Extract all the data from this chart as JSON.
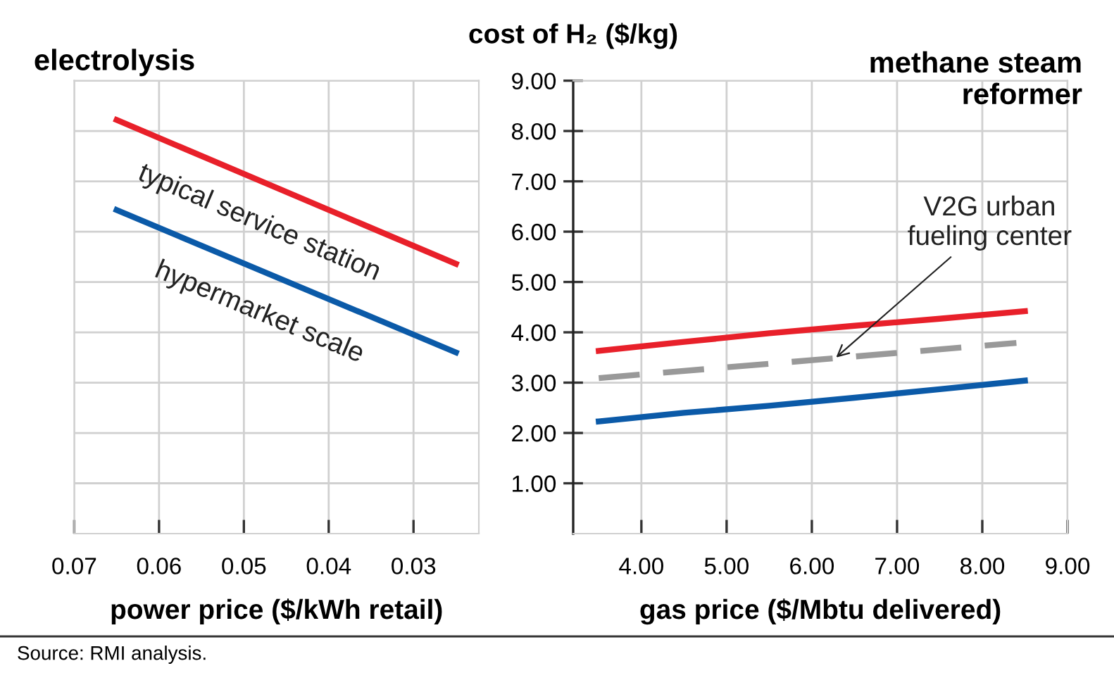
{
  "chart_data": [
    {
      "type": "line",
      "title": "electrolysis",
      "xlabel": "power price ($/kWh retail)",
      "x": [
        0.065,
        0.025
      ],
      "xlim": [
        0.07,
        0.0223
      ],
      "xticks": [
        0.07,
        0.06,
        0.05,
        0.04,
        0.03
      ],
      "ylim": [
        0,
        9
      ],
      "yticks": [
        1,
        2,
        3,
        4,
        5,
        6,
        7,
        8,
        9
      ],
      "tick_labels": "x",
      "grid": true,
      "legend": false,
      "series": [
        {
          "name": "typical service station",
          "color": "#e8202a",
          "values": [
            8.22,
            5.36
          ]
        },
        {
          "name": "hypermarket scale",
          "color": "#0b5aa8",
          "values": [
            6.43,
            3.6
          ]
        }
      ]
    },
    {
      "type": "line",
      "title": "methane steam\nreformer",
      "xlabel": "gas price ($/Mbtu delivered)",
      "ylabel": "cost of H₂ ($/kg)",
      "x": [
        3.5,
        4.5,
        5.5,
        6.5,
        7.5,
        8.5
      ],
      "xlim": [
        3.2,
        9.0
      ],
      "xticks": [
        {
          "value": 4,
          "label": "4.00"
        },
        {
          "value": 5,
          "label": "5.00"
        },
        {
          "value": 6,
          "label": "6.00"
        },
        {
          "value": 7,
          "label": "7.00"
        },
        {
          "value": 8,
          "label": "8.00"
        },
        {
          "value": 9,
          "label": "9.00"
        }
      ],
      "ylim": [
        0,
        9
      ],
      "yticks": [
        {
          "value": 1,
          "label": "1.00"
        },
        {
          "value": 2,
          "label": "2.00"
        },
        {
          "value": 3,
          "label": "3.00"
        },
        {
          "value": 4,
          "label": "4.00"
        },
        {
          "value": 5,
          "label": "5.00"
        },
        {
          "value": 6,
          "label": "6.00"
        },
        {
          "value": 7,
          "label": "7.00"
        },
        {
          "value": 8,
          "label": "8.00"
        },
        {
          "value": 9,
          "label": "9.00"
        }
      ],
      "grid": true,
      "legend": false,
      "series": [
        {
          "color": "#e8202a",
          "values": [
            3.63,
            3.81,
            3.98,
            4.13,
            4.27,
            4.42
          ]
        },
        {
          "color": "#999999",
          "line_style": "dashed",
          "x": [
            3.5,
            8.4
          ],
          "values": [
            3.09,
            3.79
          ]
        },
        {
          "color": "#0b5aa8",
          "values": [
            2.23,
            2.4,
            2.54,
            2.7,
            2.87,
            3.04
          ]
        }
      ],
      "annotations": [
        {
          "text": "V2G urban\nfueling center",
          "x": 6.25,
          "y": 3.45
        },
        "Source: RMI analysis."
      ]
    }
  ]
}
